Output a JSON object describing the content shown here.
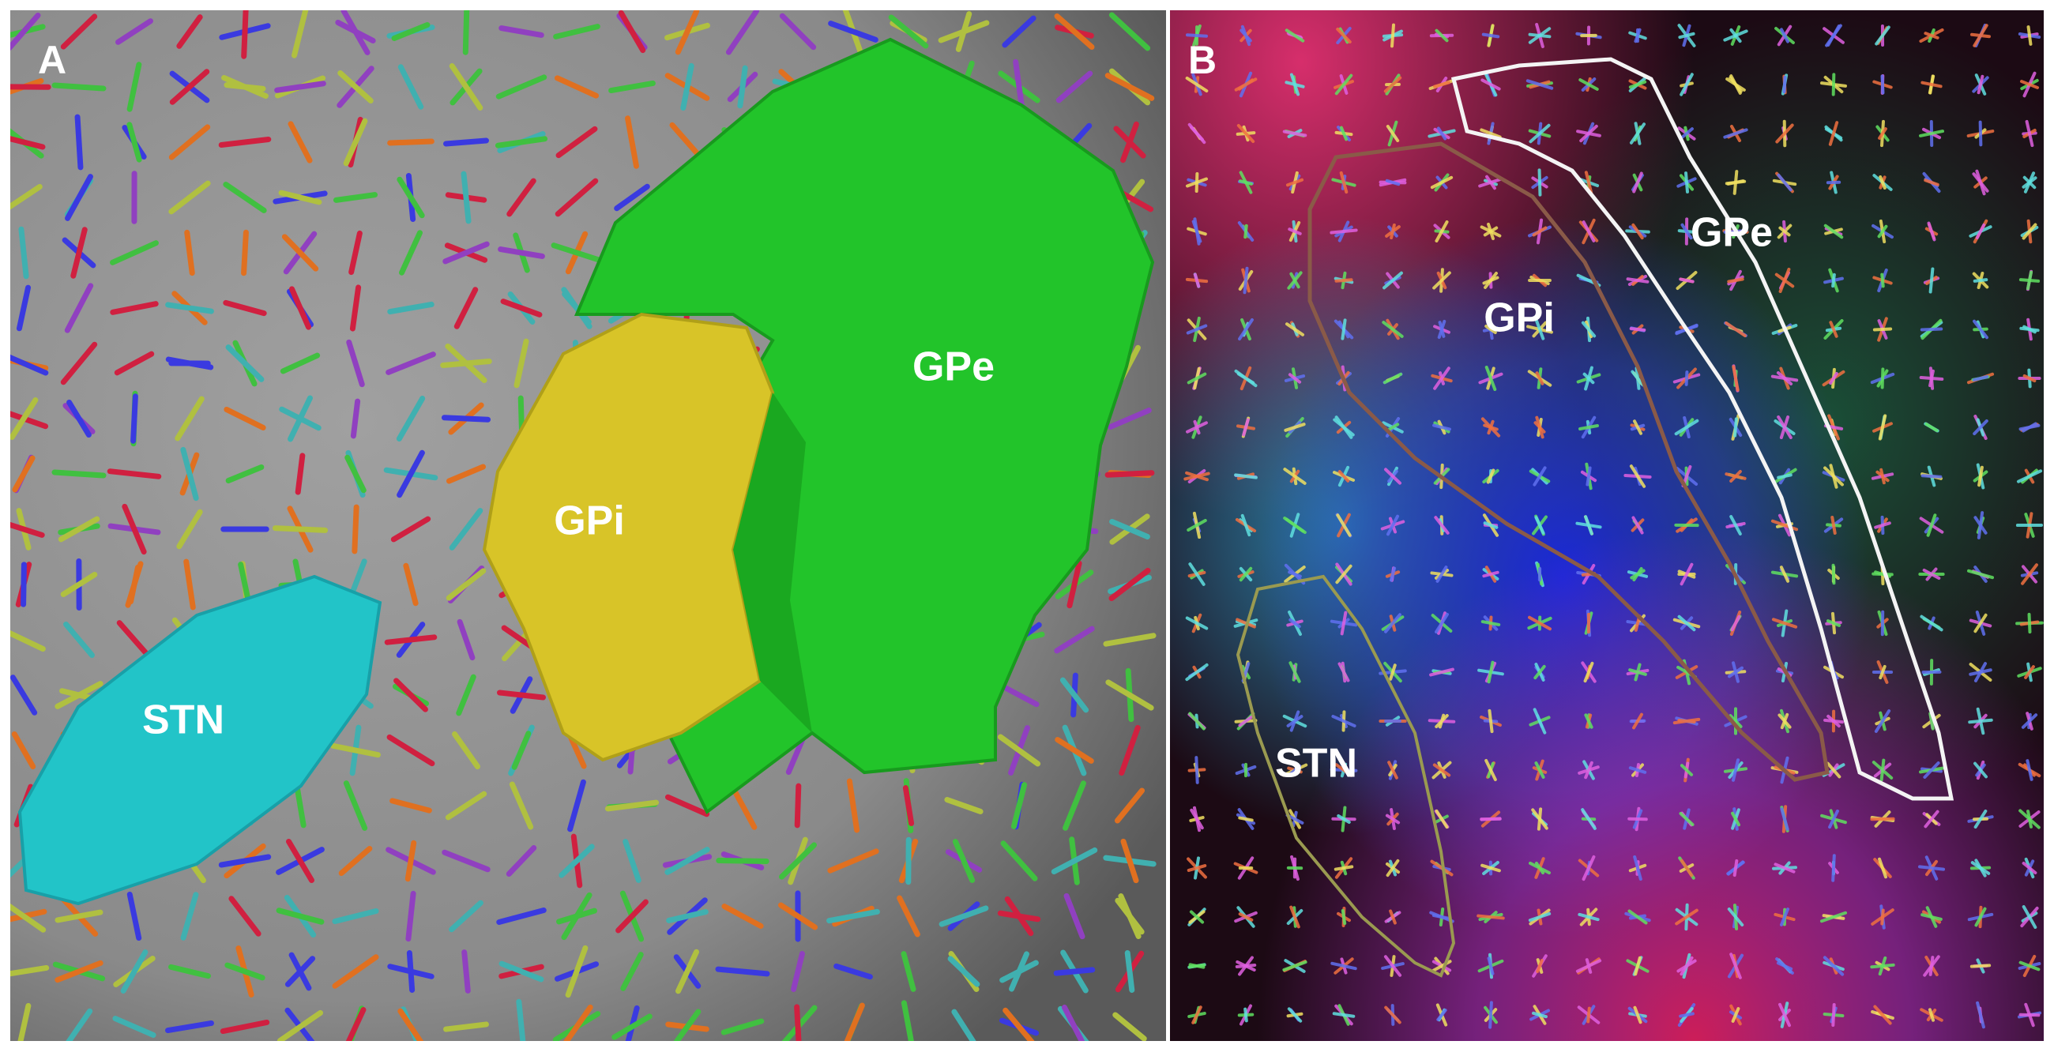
{
  "panels": [
    {
      "label": "A",
      "regions": [
        "STN",
        "GPi",
        "GPe"
      ]
    },
    {
      "label": "B",
      "regions": [
        "STN",
        "GPi",
        "GPe"
      ]
    }
  ]
}
